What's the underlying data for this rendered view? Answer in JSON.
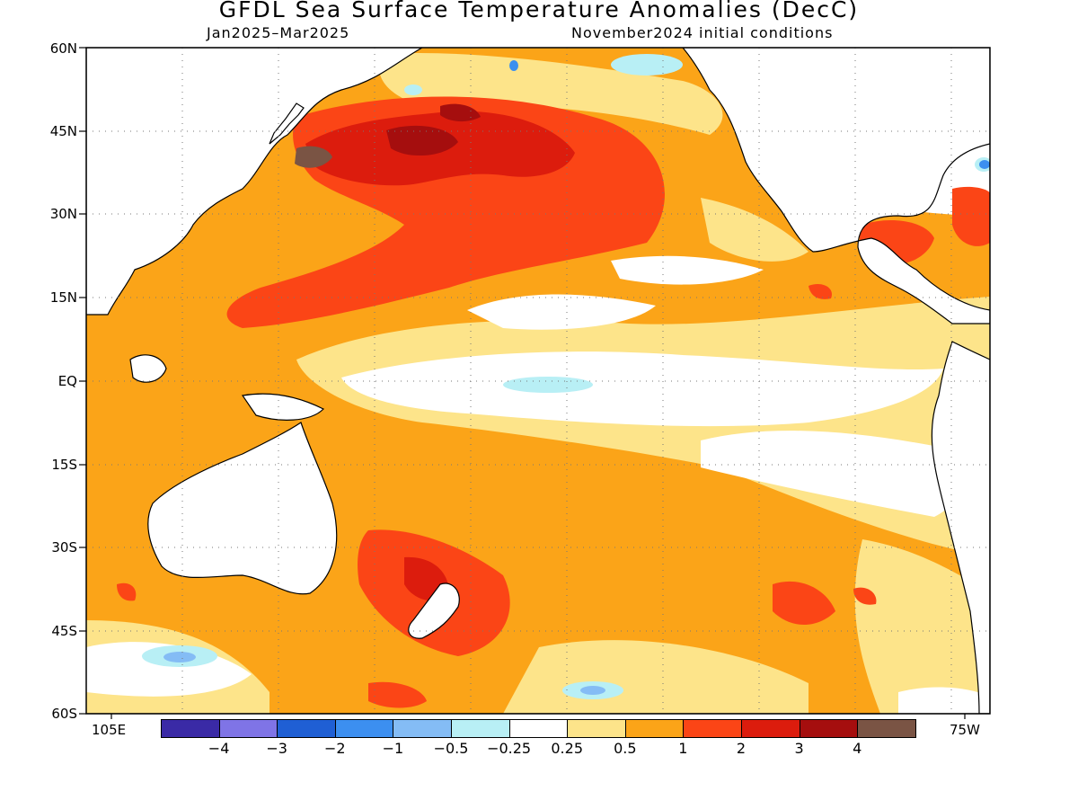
{
  "title": "GFDL Sea Surface Temperature Anomalies (DecC)",
  "period": "Jan2025–Mar2025",
  "init": "November2024 initial conditions",
  "lat_labels": [
    "60N",
    "45N",
    "30N",
    "15N",
    "EQ",
    "15S",
    "30S",
    "45S",
    "60S"
  ],
  "lon_left": "105E",
  "lon_right": "75W",
  "colorbar": {
    "colors": [
      "#3a2aa6",
      "#7f74e6",
      "#1f5fd4",
      "#3c8ff0",
      "#84bcf5",
      "#b8eff5",
      "#ffffff",
      "#fde48a",
      "#fba418",
      "#fb4516",
      "#dc1c0d",
      "#a50e0e",
      "#7a5444"
    ],
    "labels": [
      "−4",
      "−3",
      "−2",
      "−1",
      "−0.5",
      "−0.25",
      "0.25",
      "0.5",
      "1",
      "2",
      "3",
      "4"
    ]
  },
  "chart_data": {
    "type": "heatmap",
    "title": "GFDL Sea Surface Temperature Anomalies (DecC)",
    "period": "Jan2025–Mar2025",
    "initial_conditions": "November2024 initial conditions",
    "lon_range": [
      "105E",
      "75W"
    ],
    "lat_range": [
      "60S",
      "60N"
    ],
    "levels": [
      -4,
      -3,
      -2,
      -1,
      -0.5,
      -0.25,
      0.25,
      0.5,
      1,
      2,
      3,
      4
    ],
    "grid": true
  }
}
